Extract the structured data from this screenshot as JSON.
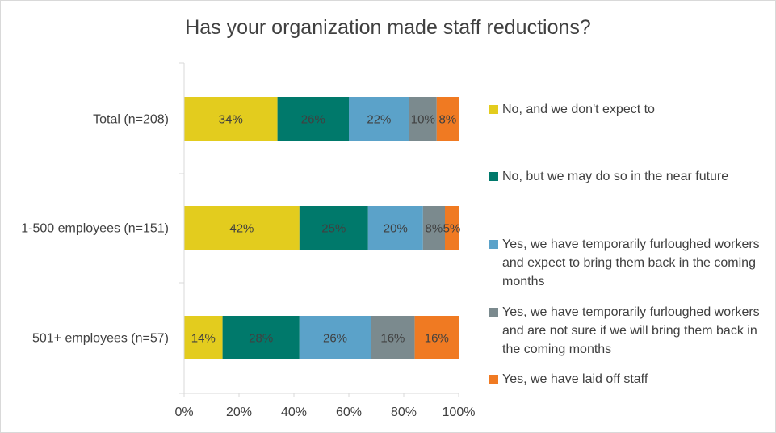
{
  "chart_data": {
    "type": "bar",
    "orientation": "horizontal",
    "stacked": true,
    "title": "Has your organization made staff reductions?",
    "categories": [
      "Total (n=208)",
      "1-500 employees (n=151)",
      "501+ employees (n=57)"
    ],
    "series": [
      {
        "name": "No, and we don't expect to",
        "color": "#e3cc1e",
        "values": [
          34,
          42,
          14
        ],
        "labels": [
          "34%",
          "42%",
          "14%"
        ]
      },
      {
        "name": "No, but we may do so in the near future",
        "color": "#00796b",
        "values": [
          26,
          25,
          28
        ],
        "labels": [
          "26%",
          "25%",
          "28%"
        ]
      },
      {
        "name": "Yes, we have temporarily furloughed workers and expect to bring them back in the coming months",
        "color": "#5ba2c9",
        "values": [
          22,
          20,
          26
        ],
        "labels": [
          "22%",
          "20%",
          "26%"
        ]
      },
      {
        "name": "Yes, we have temporarily furloughed workers and are not sure if we will bring them back in the coming months",
        "color": "#7b8a8e",
        "values": [
          10,
          8,
          16
        ],
        "labels": [
          "10%",
          "8%",
          "16%"
        ]
      },
      {
        "name": "Yes, we have laid off staff",
        "color": "#f07a22",
        "values": [
          8,
          5,
          16
        ],
        "labels": [
          "8%",
          "5%",
          "16%"
        ]
      }
    ],
    "xlim": [
      0,
      100
    ],
    "xticks": [
      "0%",
      "20%",
      "40%",
      "60%",
      "80%",
      "100%"
    ],
    "grid": false,
    "legend_position": "right"
  }
}
